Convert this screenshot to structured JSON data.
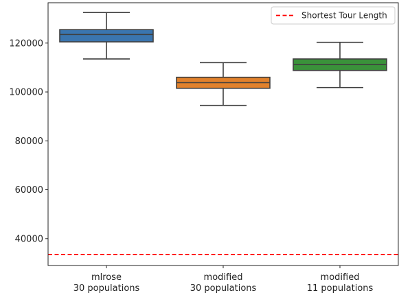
{
  "chart_data": {
    "type": "box",
    "title": "",
    "xlabel": "",
    "ylabel": "",
    "categories": [
      "mlrose\n30 populations",
      "modified\n30 populations",
      "modified\n11 populations"
    ],
    "boxes": [
      {
        "category": "mlrose\n30 populations",
        "whisker_low": 113500,
        "q1": 120500,
        "median": 123500,
        "q3": 125500,
        "whisker_high": 132500,
        "color": "#3a75af"
      },
      {
        "category": "modified\n30 populations",
        "whisker_low": 94500,
        "q1": 101500,
        "median": 103800,
        "q3": 106000,
        "whisker_high": 112000,
        "color": "#e1812c"
      },
      {
        "category": "modified\n11 populations",
        "whisker_low": 101800,
        "q1": 108800,
        "median": 111200,
        "q3": 113500,
        "whisker_high": 120300,
        "color": "#3a923a"
      }
    ],
    "reference_line": {
      "label": "Shortest Tour Length",
      "value": 33500,
      "color": "#ff0000",
      "style": "dashed"
    },
    "y_ticks": [
      40000,
      60000,
      80000,
      100000,
      120000
    ],
    "ylim": [
      29000,
      136500
    ],
    "grid": false,
    "legend": {
      "position": "top-right",
      "entries": [
        "Shortest Tour Length"
      ]
    }
  }
}
